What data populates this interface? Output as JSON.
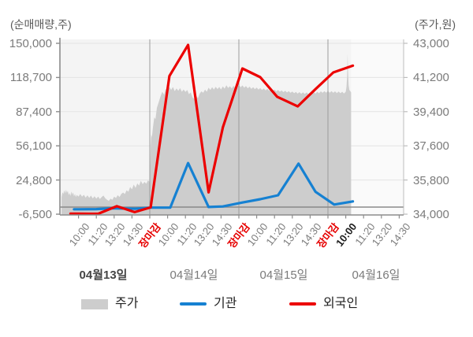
{
  "header": {
    "left_axis_title": "(순매매량,주)",
    "right_axis_title": "(주가,원)"
  },
  "left_axis": {
    "labels": [
      "150,000",
      "118,700",
      "87,400",
      "56,100",
      "24,800",
      "-6,500"
    ]
  },
  "right_axis": {
    "labels": [
      "43,000",
      "41,200",
      "39,400",
      "37,600",
      "35,800",
      "34,000"
    ]
  },
  "x_axis": {
    "ticks": [
      {
        "label": "10:00",
        "type": "time"
      },
      {
        "label": "11:20",
        "type": "time"
      },
      {
        "label": "13:20",
        "type": "time"
      },
      {
        "label": "14:30",
        "type": "time"
      },
      {
        "label": "장마감",
        "type": "close"
      },
      {
        "label": "10:00",
        "type": "time"
      },
      {
        "label": "11:20",
        "type": "time"
      },
      {
        "label": "13:20",
        "type": "time"
      },
      {
        "label": "14:30",
        "type": "time"
      },
      {
        "label": "장마감",
        "type": "close"
      },
      {
        "label": "10:00",
        "type": "time"
      },
      {
        "label": "11:20",
        "type": "time"
      },
      {
        "label": "13:20",
        "type": "time"
      },
      {
        "label": "14:30",
        "type": "time"
      },
      {
        "label": "장마감",
        "type": "close"
      },
      {
        "label": "10:00",
        "type": "current"
      },
      {
        "label": "11:20",
        "type": "time"
      },
      {
        "label": "13:20",
        "type": "time"
      },
      {
        "label": "14:30",
        "type": "time"
      }
    ]
  },
  "dates": [
    {
      "label": "04월13일",
      "emphasis": true
    },
    {
      "label": "04월14일",
      "emphasis": false
    },
    {
      "label": "04월15일",
      "emphasis": false
    },
    {
      "label": "04월16일",
      "emphasis": false
    }
  ],
  "legend": [
    {
      "label": "주가",
      "swatch": "area",
      "color": "#cdcdcd"
    },
    {
      "label": "기관",
      "swatch": "line",
      "color": "#1681d2"
    },
    {
      "label": "외국인",
      "swatch": "line",
      "color": "#ec0000"
    }
  ],
  "chart_data": {
    "type": "combo",
    "left_axis": {
      "label": "(순매매량,주)",
      "ticks": [
        150000,
        118700,
        87400,
        56100,
        24800,
        -6500
      ],
      "unit": "shares"
    },
    "right_axis": {
      "label": "(주가,원)",
      "ticks": [
        43000,
        41200,
        39400,
        37600,
        35800,
        34000
      ],
      "unit": "won"
    },
    "x_tick_count": 19,
    "close_tick_indexes": [
      4,
      9,
      14
    ],
    "data_end_x": 15.3,
    "grid": true,
    "legend_position": "bottom",
    "series": [
      {
        "name": "주가",
        "type": "area",
        "axis": "right",
        "color": "#cdcdcd",
        "points": [
          [
            -0.95,
            34900
          ],
          [
            -0.9,
            35150
          ],
          [
            -0.85,
            35060
          ],
          [
            -0.8,
            35260
          ],
          [
            -0.75,
            35100
          ],
          [
            -0.7,
            35290
          ],
          [
            -0.65,
            35120
          ],
          [
            -0.6,
            35230
          ],
          [
            -0.55,
            35000
          ],
          [
            -0.5,
            35120
          ],
          [
            -0.45,
            34960
          ],
          [
            -0.4,
            35200
          ],
          [
            -0.35,
            35030
          ],
          [
            -0.3,
            35150
          ],
          [
            -0.25,
            34940
          ],
          [
            -0.2,
            35060
          ],
          [
            -0.15,
            34900
          ],
          [
            -0.1,
            35010
          ],
          [
            0,
            34930
          ],
          [
            0.1,
            35060
          ],
          [
            0.2,
            34920
          ],
          [
            0.3,
            35020
          ],
          [
            0.4,
            34870
          ],
          [
            0.5,
            34990
          ],
          [
            0.6,
            34860
          ],
          [
            0.7,
            34980
          ],
          [
            0.8,
            34830
          ],
          [
            0.9,
            34940
          ],
          [
            1,
            34820
          ],
          [
            1.1,
            34930
          ],
          [
            1.2,
            34800
          ],
          [
            1.3,
            34900
          ],
          [
            1.4,
            34980
          ],
          [
            1.5,
            34840
          ],
          [
            1.6,
            34760
          ],
          [
            1.7,
            34700
          ],
          [
            1.8,
            34820
          ],
          [
            1.9,
            34760
          ],
          [
            2,
            34920
          ],
          [
            2.1,
            34850
          ],
          [
            2.2,
            35000
          ],
          [
            2.3,
            34900
          ],
          [
            2.4,
            35060
          ],
          [
            2.5,
            35140
          ],
          [
            2.6,
            35060
          ],
          [
            2.7,
            35260
          ],
          [
            2.8,
            35180
          ],
          [
            2.9,
            35430
          ],
          [
            3,
            35310
          ],
          [
            3.1,
            35560
          ],
          [
            3.2,
            35380
          ],
          [
            3.3,
            35620
          ],
          [
            3.4,
            35500
          ],
          [
            3.5,
            35760
          ],
          [
            3.6,
            35580
          ],
          [
            3.7,
            35700
          ],
          [
            3.8,
            35610
          ],
          [
            3.9,
            35780
          ],
          [
            4,
            35700
          ],
          [
            4.02,
            36500
          ],
          [
            4.05,
            37600
          ],
          [
            4.08,
            38200
          ],
          [
            4.12,
            38050
          ],
          [
            4.18,
            38600
          ],
          [
            4.25,
            39100
          ],
          [
            4.32,
            39000
          ],
          [
            4.4,
            39600
          ],
          [
            4.5,
            39900
          ],
          [
            4.6,
            40200
          ],
          [
            4.7,
            40450
          ],
          [
            4.8,
            40300
          ],
          [
            4.9,
            40600
          ],
          [
            5,
            40480
          ],
          [
            5.1,
            40700
          ],
          [
            5.2,
            40550
          ],
          [
            5.3,
            40700
          ],
          [
            5.4,
            40480
          ],
          [
            5.5,
            40620
          ],
          [
            5.6,
            40500
          ],
          [
            5.7,
            40640
          ],
          [
            5.8,
            40450
          ],
          [
            5.9,
            40570
          ],
          [
            6,
            40440
          ],
          [
            6.1,
            40540
          ],
          [
            6.2,
            40320
          ],
          [
            6.3,
            40420
          ],
          [
            6.4,
            40150
          ],
          [
            6.5,
            40060
          ],
          [
            6.6,
            40230
          ],
          [
            6.7,
            40100
          ],
          [
            6.8,
            40350
          ],
          [
            6.9,
            40470
          ],
          [
            7,
            40390
          ],
          [
            7.1,
            40560
          ],
          [
            7.2,
            40450
          ],
          [
            7.3,
            40660
          ],
          [
            7.4,
            40540
          ],
          [
            7.5,
            40690
          ],
          [
            7.6,
            40560
          ],
          [
            7.7,
            40710
          ],
          [
            7.8,
            40590
          ],
          [
            7.9,
            40700
          ],
          [
            8,
            40570
          ],
          [
            8.1,
            40730
          ],
          [
            8.2,
            40610
          ],
          [
            8.3,
            40790
          ],
          [
            8.4,
            40650
          ],
          [
            8.5,
            40740
          ],
          [
            8.6,
            40620
          ],
          [
            8.7,
            40760
          ],
          [
            8.8,
            40640
          ],
          [
            8.9,
            40720
          ],
          [
            9,
            40800
          ],
          [
            9.1,
            40690
          ],
          [
            9.2,
            40780
          ],
          [
            9.3,
            40660
          ],
          [
            9.4,
            40750
          ],
          [
            9.5,
            40630
          ],
          [
            9.6,
            40720
          ],
          [
            9.7,
            40600
          ],
          [
            9.8,
            40690
          ],
          [
            9.9,
            40580
          ],
          [
            10,
            40670
          ],
          [
            10.1,
            40560
          ],
          [
            10.2,
            40640
          ],
          [
            10.3,
            40540
          ],
          [
            10.4,
            40620
          ],
          [
            10.5,
            40520
          ],
          [
            10.6,
            40600
          ],
          [
            10.7,
            40500
          ],
          [
            10.8,
            40580
          ],
          [
            10.9,
            40480
          ],
          [
            11,
            40560
          ],
          [
            11.1,
            40460
          ],
          [
            11.2,
            40540
          ],
          [
            11.3,
            40450
          ],
          [
            11.4,
            40520
          ],
          [
            11.5,
            40430
          ],
          [
            11.6,
            40500
          ],
          [
            11.7,
            40410
          ],
          [
            11.8,
            40480
          ],
          [
            11.9,
            40390
          ],
          [
            12,
            40460
          ],
          [
            12.1,
            40370
          ],
          [
            12.2,
            40440
          ],
          [
            12.3,
            40350
          ],
          [
            12.4,
            40430
          ],
          [
            12.5,
            40340
          ],
          [
            12.6,
            40420
          ],
          [
            12.7,
            40330
          ],
          [
            12.8,
            40410
          ],
          [
            12.9,
            40330
          ],
          [
            13,
            40420
          ],
          [
            13.1,
            40340
          ],
          [
            13.2,
            40430
          ],
          [
            13.3,
            40350
          ],
          [
            13.4,
            40450
          ],
          [
            13.5,
            40370
          ],
          [
            13.6,
            40470
          ],
          [
            13.7,
            40390
          ],
          [
            13.8,
            40480
          ],
          [
            13.9,
            40400
          ],
          [
            14,
            40490
          ],
          [
            14.1,
            40400
          ],
          [
            14.2,
            40480
          ],
          [
            14.3,
            40390
          ],
          [
            14.4,
            40470
          ],
          [
            14.5,
            40380
          ],
          [
            14.6,
            40460
          ],
          [
            14.7,
            40370
          ],
          [
            14.8,
            40450
          ],
          [
            14.9,
            40360
          ],
          [
            15,
            40450
          ],
          [
            15.04,
            40700
          ],
          [
            15.08,
            41300
          ],
          [
            15.1,
            42460
          ],
          [
            15.13,
            41500
          ],
          [
            15.16,
            40800
          ],
          [
            15.2,
            40550
          ],
          [
            15.3,
            40420
          ]
        ]
      },
      {
        "name": "기관",
        "type": "line",
        "axis": "left",
        "color": "#1681d2",
        "points": [
          [
            -0.25,
            -2000
          ],
          [
            0,
            -2050
          ],
          [
            1,
            -1900
          ],
          [
            1.9,
            -1100
          ],
          [
            2.5,
            -1400
          ],
          [
            3.2,
            -1500
          ],
          [
            4.05,
            -500
          ],
          [
            5.15,
            -400
          ],
          [
            6.15,
            40300
          ],
          [
            7.3,
            100
          ],
          [
            8.1,
            600
          ],
          [
            9.2,
            4200
          ],
          [
            10.2,
            7200
          ],
          [
            11.2,
            10800
          ],
          [
            12.35,
            39800
          ],
          [
            13.3,
            14000
          ],
          [
            14.35,
            2300
          ],
          [
            15.4,
            5200
          ]
        ]
      },
      {
        "name": "외국인",
        "type": "line",
        "axis": "left",
        "color": "#ec0000",
        "points": [
          [
            -0.45,
            -6000
          ],
          [
            0,
            -6050
          ],
          [
            0.6,
            -6150
          ],
          [
            1.1,
            -6100
          ],
          [
            2.15,
            800
          ],
          [
            3.15,
            -4600
          ],
          [
            4.05,
            -300
          ],
          [
            5.1,
            120000
          ],
          [
            6.15,
            148500
          ],
          [
            7.3,
            13500
          ],
          [
            8.1,
            73000
          ],
          [
            9.2,
            126900
          ],
          [
            10.2,
            119000
          ],
          [
            11.15,
            101000
          ],
          [
            12.3,
            92200
          ],
          [
            13.3,
            108000
          ],
          [
            14.3,
            123300
          ],
          [
            15.4,
            129500
          ]
        ]
      }
    ]
  }
}
